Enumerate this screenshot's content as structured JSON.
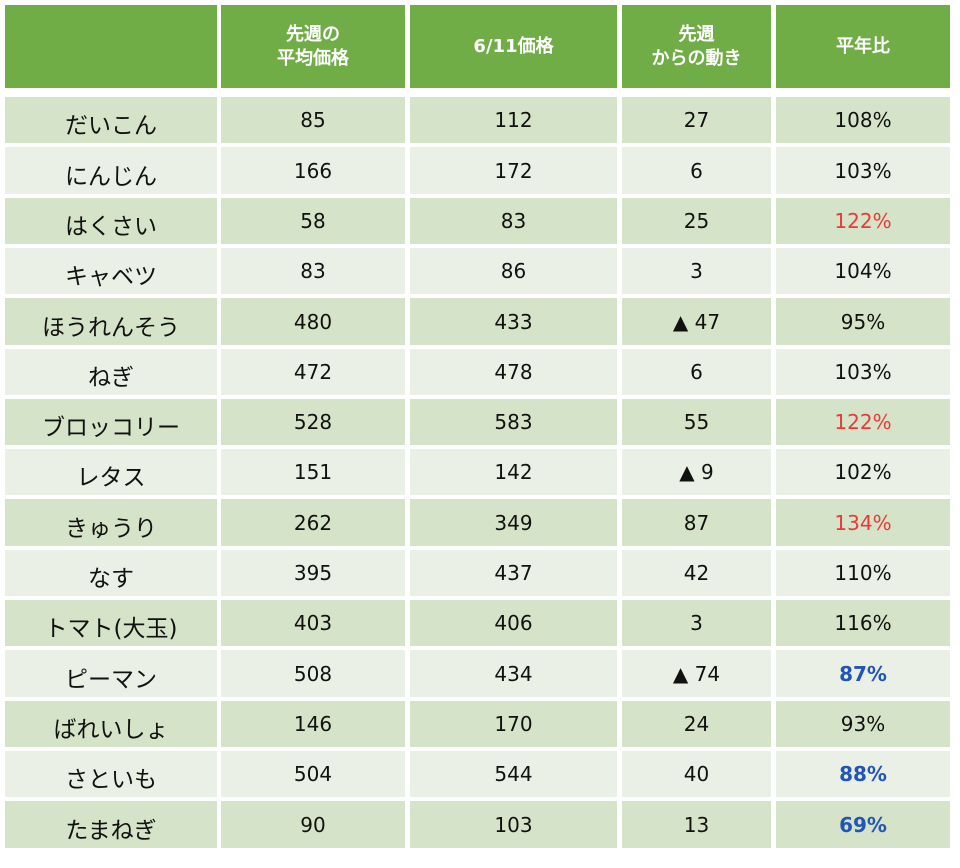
{
  "table": {
    "header": [
      "",
      "先週の\n平均価格",
      "6/11価格",
      "先週\nからの動き",
      "平年比"
    ],
    "rows": [
      [
        "だいこん",
        "85",
        "112",
        "27",
        "108%"
      ],
      [
        "にんじん",
        "166",
        "172",
        "6",
        "103%"
      ],
      [
        "はくさい",
        "58",
        "83",
        "25",
        "122%"
      ],
      [
        "キャベツ",
        "83",
        "86",
        "3",
        "104%"
      ],
      [
        "ほうれんそう",
        "480",
        "433",
        "▲ 47",
        "95%"
      ],
      [
        "ねぎ",
        "472",
        "478",
        "6",
        "103%"
      ],
      [
        "ブロッコリー",
        "528",
        "583",
        "55",
        "122%"
      ],
      [
        "レタス",
        "151",
        "142",
        "▲ 9",
        "102%"
      ],
      [
        "きゅうり",
        "262",
        "349",
        "87",
        "134%"
      ],
      [
        "なす",
        "395",
        "437",
        "42",
        "110%"
      ],
      [
        "トマト(大玉)",
        "403",
        "406",
        "3",
        "116%"
      ],
      [
        "ピーマン",
        "508",
        "434",
        "▲ 74",
        "87%"
      ],
      [
        "ばれいしょ",
        "146",
        "170",
        "24",
        "93%"
      ],
      [
        "さといも",
        "504",
        "544",
        "40",
        "88%"
      ],
      [
        "たまねぎ",
        "90",
        "103",
        "13",
        "69%"
      ]
    ]
  }
}
